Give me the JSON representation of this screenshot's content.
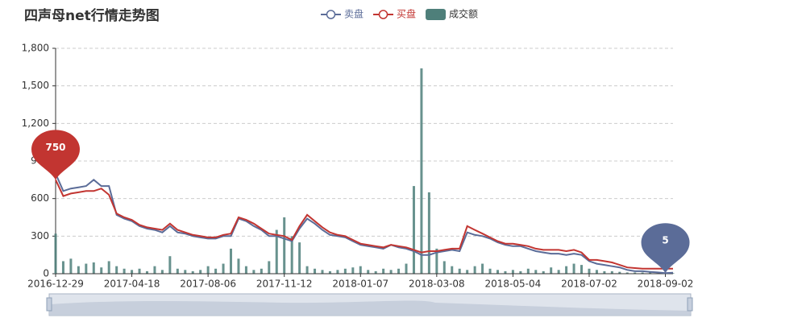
{
  "chart_data": {
    "type": "line",
    "title": "四声母net行情走势图",
    "categories": [
      "2016-12-29",
      null,
      null,
      null,
      null,
      null,
      null,
      null,
      null,
      null,
      "2017-04-18",
      null,
      null,
      null,
      null,
      null,
      null,
      null,
      null,
      null,
      "2017-08-06",
      null,
      null,
      null,
      null,
      null,
      null,
      null,
      null,
      null,
      "2017-11-12",
      null,
      null,
      null,
      null,
      null,
      null,
      null,
      null,
      null,
      "2018-01-07",
      null,
      null,
      null,
      null,
      null,
      null,
      null,
      null,
      null,
      "2018-03-08",
      null,
      null,
      null,
      null,
      null,
      null,
      null,
      null,
      null,
      "2018-05-04",
      null,
      null,
      null,
      null,
      null,
      null,
      null,
      null,
      null,
      "2018-07-02",
      null,
      null,
      null,
      null,
      null,
      null,
      null,
      null,
      null,
      "2018-09-02",
      null
    ],
    "series": [
      {
        "name": "卖盘",
        "color": "#5b6c98",
        "mark_point": 5,
        "values": [
          800,
          660,
          680,
          690,
          700,
          750,
          700,
          700,
          470,
          440,
          420,
          380,
          360,
          350,
          330,
          380,
          330,
          320,
          300,
          290,
          280,
          280,
          300,
          300,
          440,
          420,
          380,
          350,
          300,
          300,
          280,
          260,
          360,
          440,
          400,
          350,
          310,
          300,
          290,
          260,
          230,
          220,
          210,
          200,
          230,
          210,
          200,
          180,
          150,
          150,
          170,
          180,
          190,
          180,
          330,
          310,
          300,
          280,
          250,
          230,
          220,
          220,
          200,
          180,
          170,
          160,
          160,
          150,
          160,
          150,
          100,
          80,
          70,
          60,
          50,
          30,
          20,
          20,
          15,
          10,
          5,
          8
        ]
      },
      {
        "name": "买盘",
        "color": "#c23531",
        "mark_point": 750,
        "values": [
          750,
          620,
          640,
          650,
          660,
          660,
          680,
          630,
          480,
          450,
          430,
          390,
          370,
          360,
          350,
          400,
          350,
          330,
          310,
          300,
          290,
          290,
          310,
          320,
          450,
          430,
          400,
          360,
          320,
          310,
          300,
          270,
          380,
          470,
          420,
          370,
          330,
          310,
          300,
          270,
          240,
          230,
          220,
          210,
          230,
          220,
          210,
          190,
          170,
          180,
          180,
          190,
          200,
          200,
          380,
          350,
          320,
          290,
          260,
          240,
          240,
          230,
          220,
          200,
          190,
          190,
          190,
          180,
          190,
          170,
          110,
          110,
          100,
          90,
          70,
          50,
          45,
          40,
          40,
          40,
          40,
          40
        ]
      },
      {
        "name": "成交额",
        "color": "#4e7f7a",
        "type": "bar",
        "values": [
          320,
          100,
          120,
          60,
          80,
          90,
          50,
          100,
          60,
          40,
          30,
          40,
          20,
          60,
          30,
          140,
          40,
          30,
          20,
          30,
          60,
          40,
          80,
          200,
          120,
          60,
          30,
          40,
          100,
          350,
          450,
          300,
          250,
          60,
          40,
          30,
          20,
          30,
          40,
          50,
          60,
          30,
          20,
          40,
          30,
          40,
          80,
          700,
          1640,
          650,
          200,
          100,
          60,
          40,
          30,
          60,
          80,
          40,
          30,
          20,
          30,
          20,
          40,
          30,
          20,
          50,
          30,
          60,
          80,
          70,
          40,
          30,
          20,
          20,
          15,
          10,
          10,
          10,
          10,
          5,
          5,
          5
        ]
      }
    ],
    "ylim": [
      0,
      1800
    ],
    "yticks": [
      0,
      300,
      600,
      900,
      {
        "value": 1200,
        "label": "1,200"
      },
      {
        "value": 1500,
        "label": "1,500"
      },
      {
        "value": 1800,
        "label": "1,800"
      }
    ],
    "grid": true
  }
}
